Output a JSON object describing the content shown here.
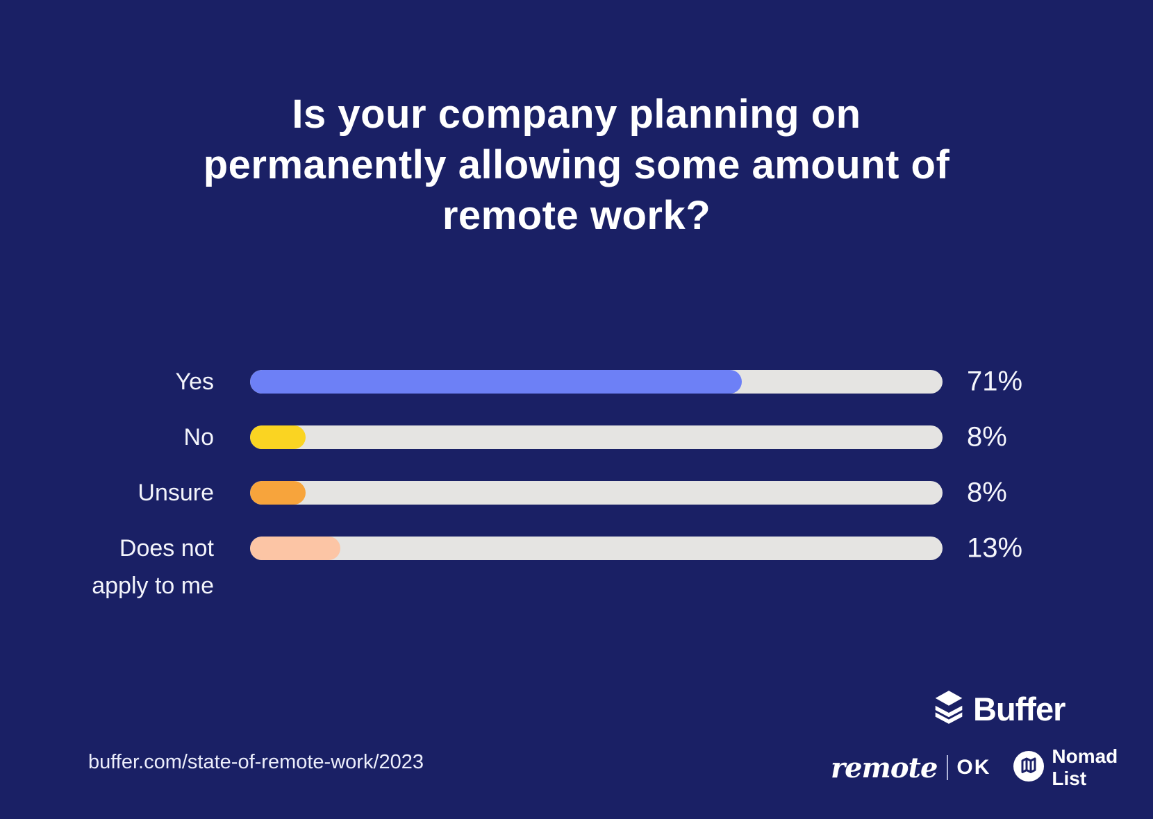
{
  "page": {
    "background": "#1a2065"
  },
  "title_lines": [
    "Is your company planning on",
    "permanently allowing some amount of",
    "remote work?"
  ],
  "chart_data": {
    "type": "bar",
    "orientation": "horizontal",
    "title": "Is your company planning on permanently allowing some amount of remote work?",
    "categories": [
      "Yes",
      "No",
      "Unsure",
      "Does not apply to me"
    ],
    "values": [
      71,
      8,
      8,
      13
    ],
    "value_labels": [
      "71%",
      "8%",
      "8%",
      "13%"
    ],
    "bar_colors": [
      "#6d80f6",
      "#fad422",
      "#f7a43c",
      "#fcc5a5"
    ],
    "track_color": "#e5e4e2",
    "xlim": [
      0,
      100
    ],
    "grid": false,
    "value_label_position": "right",
    "category_label_position": "left"
  },
  "footer": {
    "source_url": "buffer.com/state-of-remote-work/2023",
    "buffer_logo_label": "Buffer",
    "remote_ok": {
      "remote": "remote",
      "ok": "OK"
    },
    "nomad_list_label": "Nomad List"
  }
}
